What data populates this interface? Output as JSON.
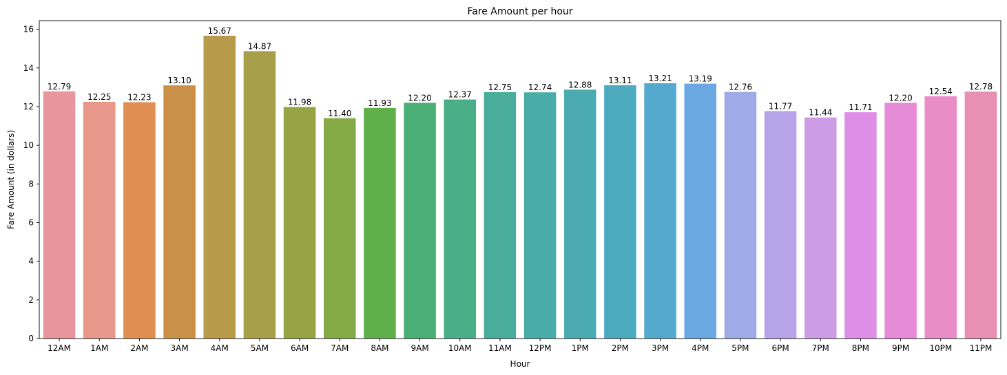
{
  "chart_data": {
    "type": "bar",
    "title": "Fare Amount per hour",
    "xlabel": "Hour",
    "ylabel": "Fare Amount (in dollars)",
    "ylim": [
      0,
      16.45
    ],
    "yticks": [
      0,
      2,
      4,
      6,
      8,
      10,
      12,
      14,
      16
    ],
    "grid": false,
    "categories": [
      "12AM",
      "1AM",
      "2AM",
      "3AM",
      "4AM",
      "5AM",
      "6AM",
      "7AM",
      "8AM",
      "9AM",
      "10AM",
      "11AM",
      "12PM",
      "1PM",
      "2PM",
      "3PM",
      "4PM",
      "5PM",
      "6PM",
      "7PM",
      "8PM",
      "9PM",
      "10PM",
      "11PM"
    ],
    "values": [
      12.79,
      12.25,
      12.23,
      13.1,
      15.67,
      14.87,
      11.98,
      11.4,
      11.93,
      12.2,
      12.37,
      12.75,
      12.74,
      12.88,
      13.11,
      13.21,
      13.19,
      12.76,
      11.77,
      11.44,
      11.71,
      12.2,
      12.54,
      12.78
    ],
    "value_labels": [
      "12.79",
      "12.25",
      "12.23",
      "13.10",
      "15.67",
      "14.87",
      "11.98",
      "11.40",
      "11.93",
      "12.20",
      "12.37",
      "12.75",
      "12.74",
      "12.88",
      "13.11",
      "13.21",
      "13.19",
      "12.76",
      "11.77",
      "11.44",
      "11.71",
      "12.20",
      "12.54",
      "12.78"
    ],
    "colors": [
      "#e8959e",
      "#e7988a",
      "#e08f52",
      "#c99147",
      "#b89b4a",
      "#a79f4a",
      "#97a443",
      "#84aa46",
      "#5fb04b",
      "#4aaf74",
      "#4aaf89",
      "#4aad9b",
      "#4aaca6",
      "#4caab1",
      "#4daabf",
      "#53a9ce",
      "#6aa8e1",
      "#9eabe6",
      "#b7a4e8",
      "#cc9ce6",
      "#de8ee6",
      "#e68cd6",
      "#e88dc6",
      "#e890b4"
    ]
  }
}
